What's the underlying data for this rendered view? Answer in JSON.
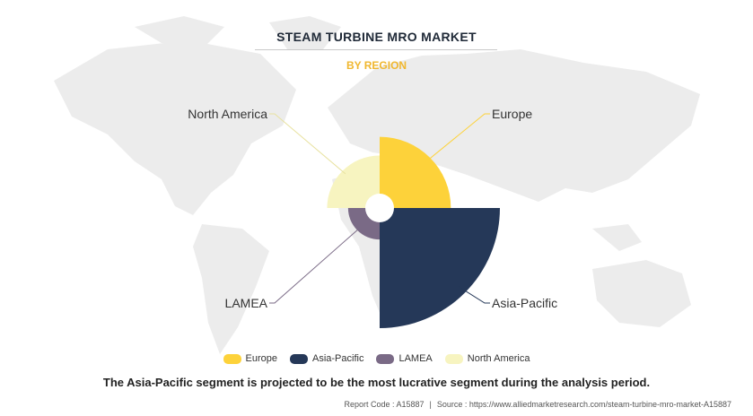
{
  "chart_data": {
    "type": "pie",
    "title": "STEAM TURBINE MRO MARKET",
    "subtitle": "BY REGION",
    "categories": [
      "Europe",
      "Asia-Pacific",
      "LAMEA",
      "North America"
    ],
    "values": [
      30.5,
      51.5,
      13.5,
      22.5
    ],
    "colors": [
      "#fdd23a",
      "#253858",
      "#7a6a86",
      "#f7f4c0"
    ],
    "legend_position": "bottom"
  },
  "caption": "The Asia-Pacific segment is projected to be the most lucrative segment during the analysis period.",
  "footer": {
    "report_code": "Report Code : A15887",
    "source": "Source : https://www.alliedmarketresearch.com/steam-turbine-mro-market-A15887"
  },
  "colors": {
    "map": "#eeeeee",
    "title": "#1f2937",
    "subtitle": "#f0b72f"
  }
}
